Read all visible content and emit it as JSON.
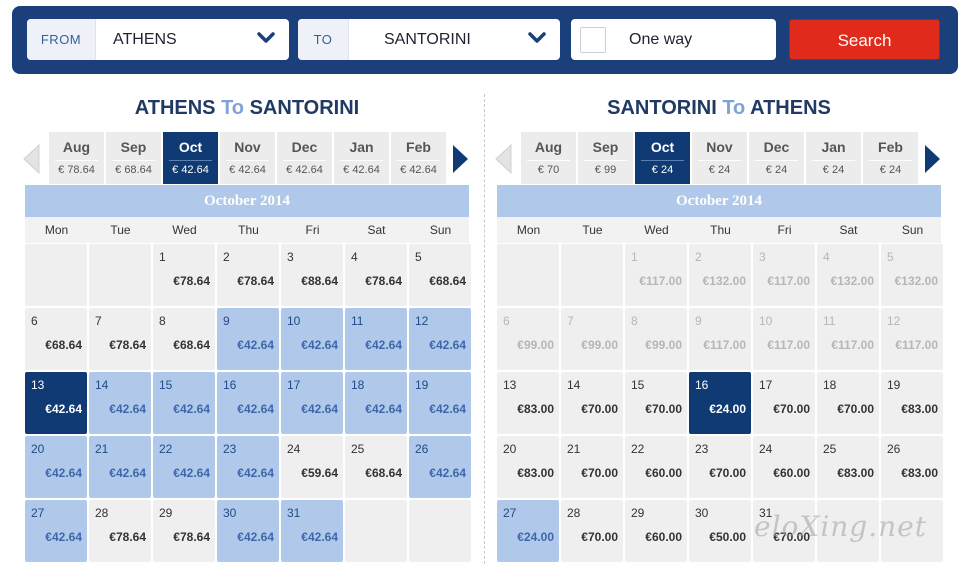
{
  "search": {
    "from_label": "FROM",
    "from_value": "ATHENS",
    "to_label": "TO",
    "to_value": "SANTORINI",
    "oneway_label": "One way",
    "search_label": "Search"
  },
  "outbound": {
    "title_from": "ATHENS",
    "title_to_word": "To",
    "title_to": "SANTORINI",
    "months": [
      {
        "name": "Aug",
        "price": "€ 78.64"
      },
      {
        "name": "Sep",
        "price": "€ 68.64"
      },
      {
        "name": "Oct",
        "price": "€ 42.64",
        "active": true
      },
      {
        "name": "Nov",
        "price": "€ 42.64"
      },
      {
        "name": "Dec",
        "price": "€ 42.64"
      },
      {
        "name": "Jan",
        "price": "€ 42.64"
      },
      {
        "name": "Feb",
        "price": "€ 42.64"
      }
    ],
    "calendar_title": "October 2014",
    "weekdays": [
      "Mon",
      "Tue",
      "Wed",
      "Thu",
      "Fri",
      "Sat",
      "Sun"
    ],
    "days": [
      {
        "d": "1",
        "p": "€78.64",
        "s": ""
      },
      {
        "d": "2",
        "p": "€78.64",
        "s": ""
      },
      {
        "d": "3",
        "p": "€88.64",
        "s": ""
      },
      {
        "d": "4",
        "p": "€78.64",
        "s": ""
      },
      {
        "d": "5",
        "p": "€68.64",
        "s": ""
      },
      {
        "d": "6",
        "p": "€68.64",
        "s": ""
      },
      {
        "d": "7",
        "p": "€78.64",
        "s": ""
      },
      {
        "d": "8",
        "p": "€68.64",
        "s": ""
      },
      {
        "d": "9",
        "p": "€42.64",
        "s": "cheap"
      },
      {
        "d": "10",
        "p": "€42.64",
        "s": "cheap"
      },
      {
        "d": "11",
        "p": "€42.64",
        "s": "cheap"
      },
      {
        "d": "12",
        "p": "€42.64",
        "s": "cheap"
      },
      {
        "d": "13",
        "p": "€42.64",
        "s": "sel"
      },
      {
        "d": "14",
        "p": "€42.64",
        "s": "cheap"
      },
      {
        "d": "15",
        "p": "€42.64",
        "s": "cheap"
      },
      {
        "d": "16",
        "p": "€42.64",
        "s": "cheap"
      },
      {
        "d": "17",
        "p": "€42.64",
        "s": "cheap"
      },
      {
        "d": "18",
        "p": "€42.64",
        "s": "cheap"
      },
      {
        "d": "19",
        "p": "€42.64",
        "s": "cheap"
      },
      {
        "d": "20",
        "p": "€42.64",
        "s": "cheap"
      },
      {
        "d": "21",
        "p": "€42.64",
        "s": "cheap"
      },
      {
        "d": "22",
        "p": "€42.64",
        "s": "cheap"
      },
      {
        "d": "23",
        "p": "€42.64",
        "s": "cheap"
      },
      {
        "d": "24",
        "p": "€59.64",
        "s": ""
      },
      {
        "d": "25",
        "p": "€68.64",
        "s": ""
      },
      {
        "d": "26",
        "p": "€42.64",
        "s": "cheap"
      },
      {
        "d": "27",
        "p": "€42.64",
        "s": "cheap"
      },
      {
        "d": "28",
        "p": "€78.64",
        "s": ""
      },
      {
        "d": "29",
        "p": "€78.64",
        "s": ""
      },
      {
        "d": "30",
        "p": "€42.64",
        "s": "cheap"
      },
      {
        "d": "31",
        "p": "€42.64",
        "s": "cheap"
      }
    ]
  },
  "return": {
    "title_from": "SANTORINI",
    "title_to_word": "To",
    "title_to": "ATHENS",
    "months": [
      {
        "name": "Aug",
        "price": "€ 70"
      },
      {
        "name": "Sep",
        "price": "€ 99"
      },
      {
        "name": "Oct",
        "price": "€ 24",
        "active": true
      },
      {
        "name": "Nov",
        "price": "€ 24"
      },
      {
        "name": "Dec",
        "price": "€ 24"
      },
      {
        "name": "Jan",
        "price": "€ 24"
      },
      {
        "name": "Feb",
        "price": "€ 24"
      }
    ],
    "calendar_title": "October 2014",
    "weekdays": [
      "Mon",
      "Tue",
      "Wed",
      "Thu",
      "Fri",
      "Sat",
      "Sun"
    ],
    "days": [
      {
        "d": "1",
        "p": "€117.00",
        "s": "past"
      },
      {
        "d": "2",
        "p": "€132.00",
        "s": "past"
      },
      {
        "d": "3",
        "p": "€117.00",
        "s": "past"
      },
      {
        "d": "4",
        "p": "€132.00",
        "s": "past"
      },
      {
        "d": "5",
        "p": "€132.00",
        "s": "past"
      },
      {
        "d": "6",
        "p": "€99.00",
        "s": "past"
      },
      {
        "d": "7",
        "p": "€99.00",
        "s": "past"
      },
      {
        "d": "8",
        "p": "€99.00",
        "s": "past"
      },
      {
        "d": "9",
        "p": "€117.00",
        "s": "past"
      },
      {
        "d": "10",
        "p": "€117.00",
        "s": "past"
      },
      {
        "d": "11",
        "p": "€117.00",
        "s": "past"
      },
      {
        "d": "12",
        "p": "€117.00",
        "s": "past"
      },
      {
        "d": "13",
        "p": "€83.00",
        "s": ""
      },
      {
        "d": "14",
        "p": "€70.00",
        "s": ""
      },
      {
        "d": "15",
        "p": "€70.00",
        "s": ""
      },
      {
        "d": "16",
        "p": "€24.00",
        "s": "sel"
      },
      {
        "d": "17",
        "p": "€70.00",
        "s": ""
      },
      {
        "d": "18",
        "p": "€70.00",
        "s": ""
      },
      {
        "d": "19",
        "p": "€83.00",
        "s": ""
      },
      {
        "d": "20",
        "p": "€83.00",
        "s": ""
      },
      {
        "d": "21",
        "p": "€70.00",
        "s": ""
      },
      {
        "d": "22",
        "p": "€60.00",
        "s": ""
      },
      {
        "d": "23",
        "p": "€70.00",
        "s": ""
      },
      {
        "d": "24",
        "p": "€60.00",
        "s": ""
      },
      {
        "d": "25",
        "p": "€83.00",
        "s": ""
      },
      {
        "d": "26",
        "p": "€83.00",
        "s": ""
      },
      {
        "d": "27",
        "p": "€24.00",
        "s": "cheap"
      },
      {
        "d": "28",
        "p": "€70.00",
        "s": ""
      },
      {
        "d": "29",
        "p": "€60.00",
        "s": ""
      },
      {
        "d": "30",
        "p": "€50.00",
        "s": ""
      },
      {
        "d": "31",
        "p": "€70.00",
        "s": ""
      }
    ]
  },
  "watermark": "eloXing.net",
  "icons": {
    "dropdown": "chevron-down-icon",
    "prev": "triangle-left-icon",
    "next": "triangle-right-icon"
  }
}
